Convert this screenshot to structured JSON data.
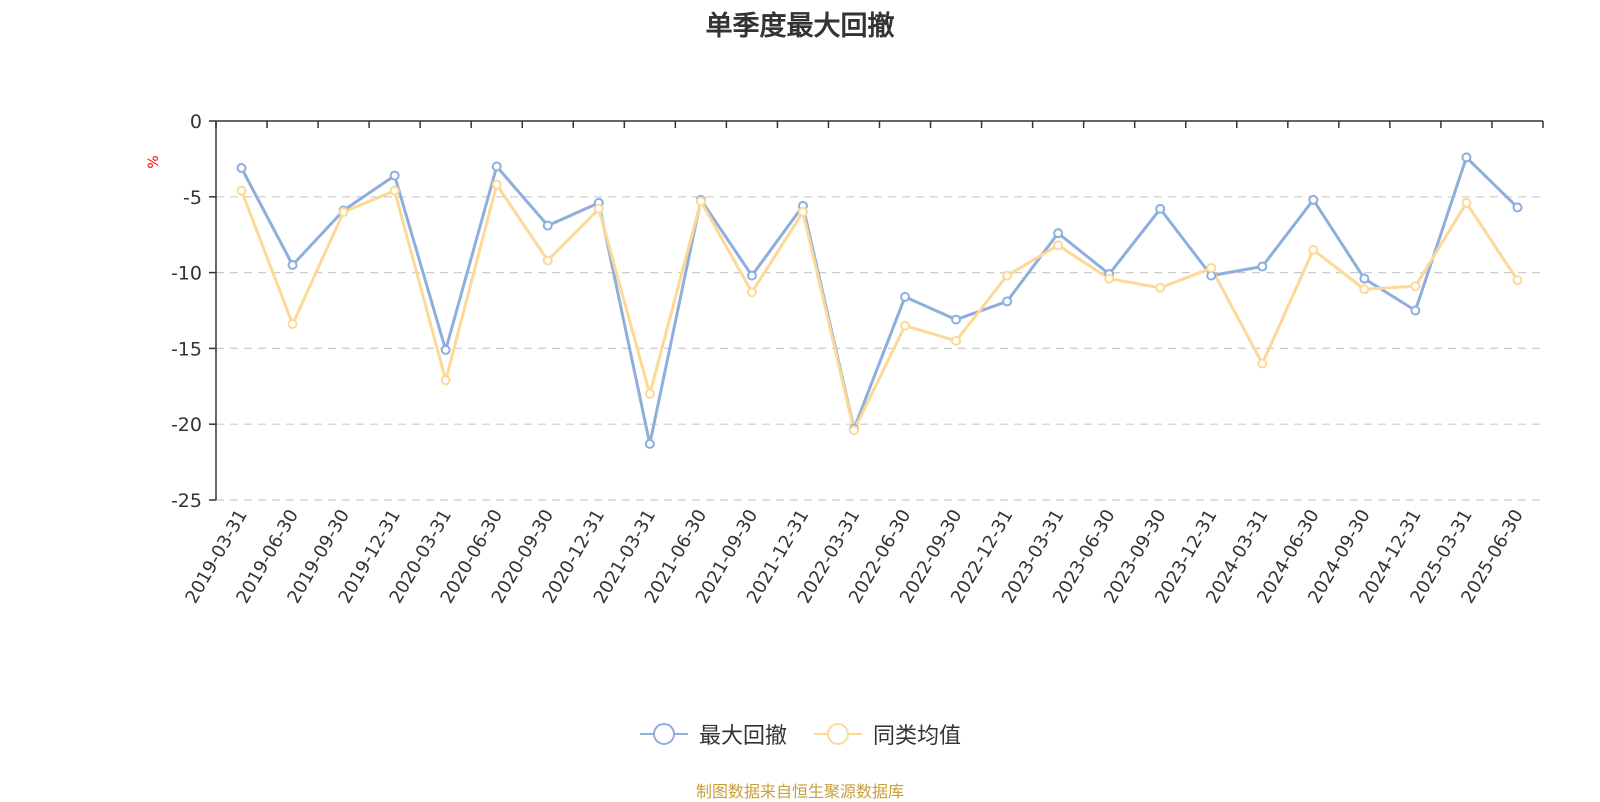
{
  "chart_data": {
    "type": "line",
    "title": "单季度最大回撤",
    "ylabel": "%",
    "xlabel": "",
    "ylim": [
      -25,
      0
    ],
    "yticks": [
      0,
      -5,
      -10,
      -15,
      -20,
      -25
    ],
    "grid": true,
    "legend_position": "bottom",
    "categories": [
      "2019-03-31",
      "2019-06-30",
      "2019-09-30",
      "2019-12-31",
      "2020-03-31",
      "2020-06-30",
      "2020-09-30",
      "2020-12-31",
      "2021-03-31",
      "2021-06-30",
      "2021-09-30",
      "2021-12-31",
      "2022-03-31",
      "2022-06-30",
      "2022-09-30",
      "2022-12-31",
      "2023-03-31",
      "2023-06-30",
      "2023-09-30",
      "2023-12-31",
      "2024-03-31",
      "2024-06-30",
      "2024-09-30",
      "2024-12-31",
      "2025-03-31",
      "2025-06-30"
    ],
    "series": [
      {
        "name": "最大回撤",
        "color": "#8eaedd",
        "values": [
          -3.1,
          -9.5,
          -5.9,
          -3.6,
          -15.1,
          -3.0,
          -6.9,
          -5.4,
          -21.3,
          -5.2,
          -10.2,
          -5.6,
          -20.3,
          -11.6,
          -13.1,
          -11.9,
          -7.4,
          -10.1,
          -5.8,
          -10.2,
          -9.6,
          -5.2,
          -10.4,
          -12.5,
          -2.4,
          -5.7
        ]
      },
      {
        "name": "同类均值",
        "color": "#fcd997",
        "values": [
          -4.6,
          -13.4,
          -6.0,
          -4.6,
          -17.1,
          -4.2,
          -9.2,
          -5.8,
          -18.0,
          -5.3,
          -11.3,
          -6.0,
          -20.4,
          -13.5,
          -14.5,
          -10.2,
          -8.2,
          -10.4,
          -11.0,
          -9.7,
          -16.0,
          -8.5,
          -11.1,
          -10.9,
          -5.4,
          -10.5
        ]
      }
    ]
  },
  "source_note": "制图数据来自恒生聚源数据库"
}
